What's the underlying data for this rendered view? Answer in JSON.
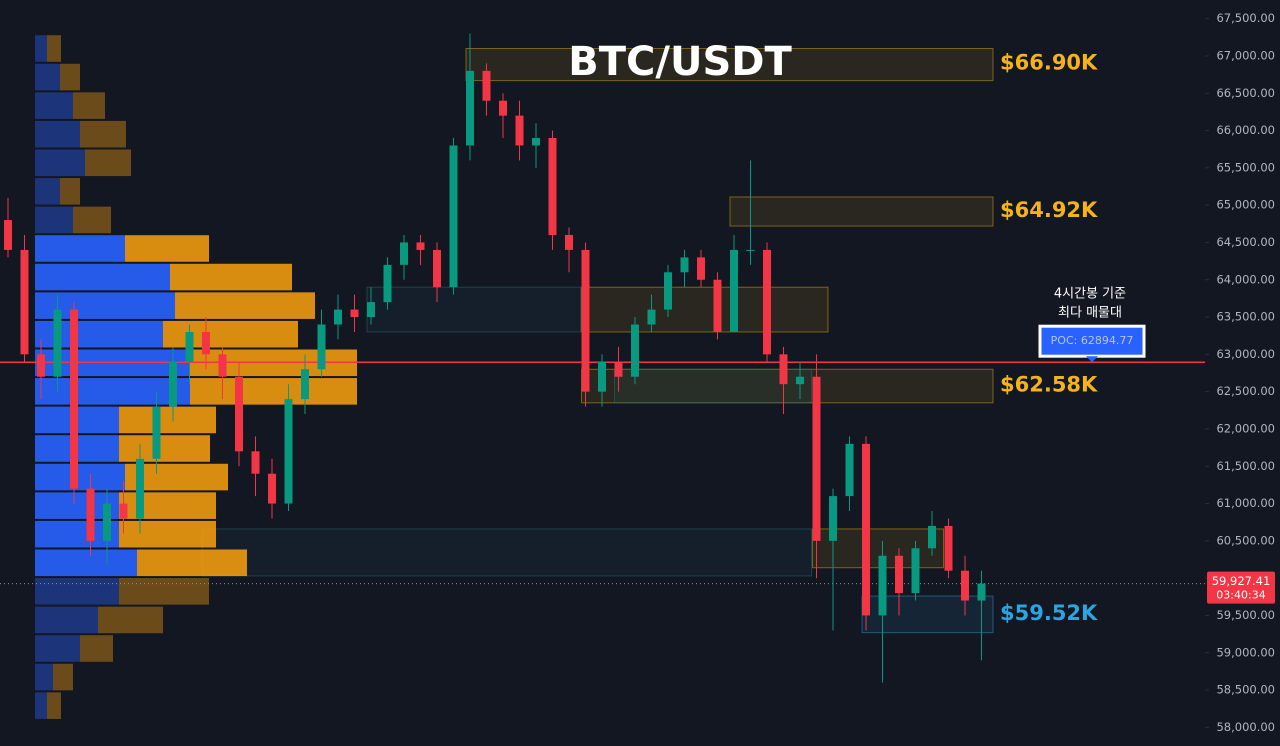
{
  "chart_data": {
    "type": "candlestick",
    "title": "BTC/USDT",
    "colors": {
      "up": "#089981",
      "down": "#f23645",
      "buy": "#2962ff",
      "sell": "#f09a0e",
      "poc": "#f23645"
    },
    "candles": [
      [
        64800,
        65100,
        64300,
        64400
      ],
      [
        64400,
        64600,
        62900,
        63000
      ],
      [
        63000,
        63200,
        62400,
        62700
      ],
      [
        62700,
        63800,
        62500,
        63600
      ],
      [
        63600,
        63700,
        61000,
        61200
      ],
      [
        61200,
        61400,
        60300,
        60500
      ],
      [
        60500,
        61200,
        60200,
        61000
      ],
      [
        61000,
        61300,
        60600,
        60800
      ],
      [
        60800,
        61800,
        60600,
        61600
      ],
      [
        61600,
        62500,
        61400,
        62300
      ],
      [
        62300,
        63100,
        62100,
        62900
      ],
      [
        62900,
        63400,
        62600,
        63300
      ],
      [
        63300,
        63500,
        62800,
        63000
      ],
      [
        63000,
        63100,
        62400,
        62700
      ],
      [
        62700,
        62900,
        61500,
        61700
      ],
      [
        61700,
        61900,
        61100,
        61400
      ],
      [
        61400,
        61600,
        60800,
        61000
      ],
      [
        61000,
        62600,
        60900,
        62400
      ],
      [
        62400,
        63000,
        62200,
        62800
      ],
      [
        62800,
        63600,
        62700,
        63400
      ],
      [
        63400,
        63800,
        63200,
        63600
      ],
      [
        63600,
        63800,
        63300,
        63500
      ],
      [
        63500,
        63900,
        63400,
        63700
      ],
      [
        63700,
        64300,
        63600,
        64200
      ],
      [
        64200,
        64600,
        64000,
        64500
      ],
      [
        64500,
        64600,
        64200,
        64400
      ],
      [
        64400,
        64500,
        63700,
        63900
      ],
      [
        63900,
        65900,
        63800,
        65800
      ],
      [
        65800,
        67300,
        65600,
        66800
      ],
      [
        66800,
        66900,
        66200,
        66400
      ],
      [
        66400,
        66500,
        65900,
        66200
      ],
      [
        66200,
        66400,
        65600,
        65800
      ],
      [
        65800,
        66100,
        65500,
        65900
      ],
      [
        65900,
        66000,
        64400,
        64600
      ],
      [
        64600,
        64700,
        64100,
        64400
      ],
      [
        64400,
        64500,
        62300,
        62500
      ],
      [
        62500,
        63000,
        62300,
        62900
      ],
      [
        62900,
        63100,
        62500,
        62700
      ],
      [
        62700,
        63500,
        62600,
        63400
      ],
      [
        63400,
        63800,
        63300,
        63600
      ],
      [
        63600,
        64200,
        63500,
        64100
      ],
      [
        64100,
        64400,
        63900,
        64300
      ],
      [
        64300,
        64400,
        63900,
        64000
      ],
      [
        64000,
        64100,
        63200,
        63300
      ],
      [
        63300,
        64600,
        63300,
        64400
      ],
      [
        64400,
        65600,
        64200,
        64400
      ],
      [
        64400,
        64500,
        62900,
        63000
      ],
      [
        63000,
        63100,
        62200,
        62600
      ],
      [
        62600,
        62900,
        62400,
        62700
      ],
      [
        62700,
        63000,
        60000,
        60500
      ],
      [
        60500,
        61200,
        59300,
        61100
      ],
      [
        61100,
        61900,
        60900,
        61800
      ],
      [
        61800,
        61900,
        59300,
        59500
      ],
      [
        59500,
        60500,
        58600,
        60300
      ],
      [
        60300,
        60400,
        59500,
        59800
      ],
      [
        59800,
        60500,
        59700,
        60400
      ],
      [
        60400,
        60900,
        60300,
        60700
      ],
      [
        60700,
        60800,
        60000,
        60100
      ],
      [
        60100,
        60300,
        59500,
        59700
      ],
      [
        59700,
        60100,
        58900,
        59927.41
      ]
    ],
    "volume_profile": {
      "prices": [
        67100,
        66717,
        66334,
        65951,
        65568,
        65185,
        64802,
        64419,
        64036,
        63653,
        63270,
        62887,
        62504,
        62121,
        61738,
        61355,
        60972,
        60589,
        60206,
        59823,
        59440,
        59057,
        58674,
        58291
      ],
      "buy": [
        12,
        25,
        38,
        45,
        50,
        25,
        38,
        90,
        135,
        140,
        128,
        155,
        155,
        84,
        84,
        90,
        84,
        84,
        102,
        84,
        63,
        45,
        18,
        12
      ],
      "sell": [
        14,
        20,
        32,
        46,
        46,
        20,
        38,
        84,
        122,
        140,
        135,
        167,
        167,
        97,
        91,
        103,
        97,
        97,
        110,
        90,
        65,
        33,
        20,
        14
      ],
      "value_area_low": 60030,
      "value_area_high": 64580
    },
    "zones": [
      {
        "value": 66900,
        "label": "$66.90K",
        "high": 67100,
        "low": 66670,
        "start": 28,
        "end": 60,
        "color": "#f0b90b",
        "label_color": "#f5b21b"
      },
      {
        "value": 64920,
        "label": "$64.92K",
        "high": 65110,
        "low": 64720,
        "start": 44,
        "end": 60,
        "color": "#f0b90b",
        "label_color": "#f5b21b"
      },
      {
        "value": 62580,
        "label": "$62.58K",
        "high": 62800,
        "low": 62350,
        "start": 35,
        "end": 60,
        "color": "#f0b90b",
        "label_color": "#f5b21b"
      },
      {
        "value": 59520,
        "label": "$59.52K",
        "high": 59760,
        "low": 59270,
        "start": 52,
        "end": 60,
        "color": "#2aa5e0",
        "label_color": "#2aa5e0"
      },
      {
        "high": 63900,
        "low": 63300,
        "start": 22,
        "end": 35,
        "color": "#2a6f80"
      },
      {
        "high": 63900,
        "low": 63300,
        "start": 35,
        "end": 50,
        "color": "#f0b90b"
      },
      {
        "high": 62800,
        "low": 62350,
        "start": 37,
        "end": 49,
        "color": "#2a6f80"
      },
      {
        "high": 60660,
        "low": 60030,
        "start": 12,
        "end": 49,
        "color": "#2a6f80"
      },
      {
        "high": 60660,
        "low": 60140,
        "start": 49,
        "end": 57,
        "color": "#f0b90b"
      }
    ],
    "poc": {
      "value": 62894.77,
      "label": "POC: 62894.77"
    },
    "annotation": [
      "4시간봉 기준",
      "최다 매물대"
    ],
    "current_price": {
      "value": 59927.41,
      "label": "59,927.41"
    },
    "countdown": "03:40:34",
    "ylim": [
      57750,
      67750
    ],
    "yticks": [
      {
        "value": 58000,
        "label": "58,000.00"
      },
      {
        "value": 58500,
        "label": "58,500.00"
      },
      {
        "value": 59000,
        "label": "59,000.00"
      },
      {
        "value": 59500,
        "label": "59,500.00"
      },
      {
        "value": 60000,
        "label": "60,000.00"
      },
      {
        "value": 60500,
        "label": "60,500.00"
      },
      {
        "value": 61000,
        "label": "61,000.00"
      },
      {
        "value": 61500,
        "label": "61,500.00"
      },
      {
        "value": 62000,
        "label": "62,000.00"
      },
      {
        "value": 62500,
        "label": "62,500.00"
      },
      {
        "value": 63000,
        "label": "63,000.00"
      },
      {
        "value": 63500,
        "label": "63,500.00"
      },
      {
        "value": 64000,
        "label": "64,000.00"
      },
      {
        "value": 64500,
        "label": "64,500.00"
      },
      {
        "value": 65000,
        "label": "65,000.00"
      },
      {
        "value": 65500,
        "label": "65,500.00"
      },
      {
        "value": 66000,
        "label": "66,000.00"
      },
      {
        "value": 66500,
        "label": "66,500.00"
      },
      {
        "value": 67000,
        "label": "67,000.00"
      },
      {
        "value": 67500,
        "label": "67,500.00"
      }
    ],
    "grid": false
  }
}
